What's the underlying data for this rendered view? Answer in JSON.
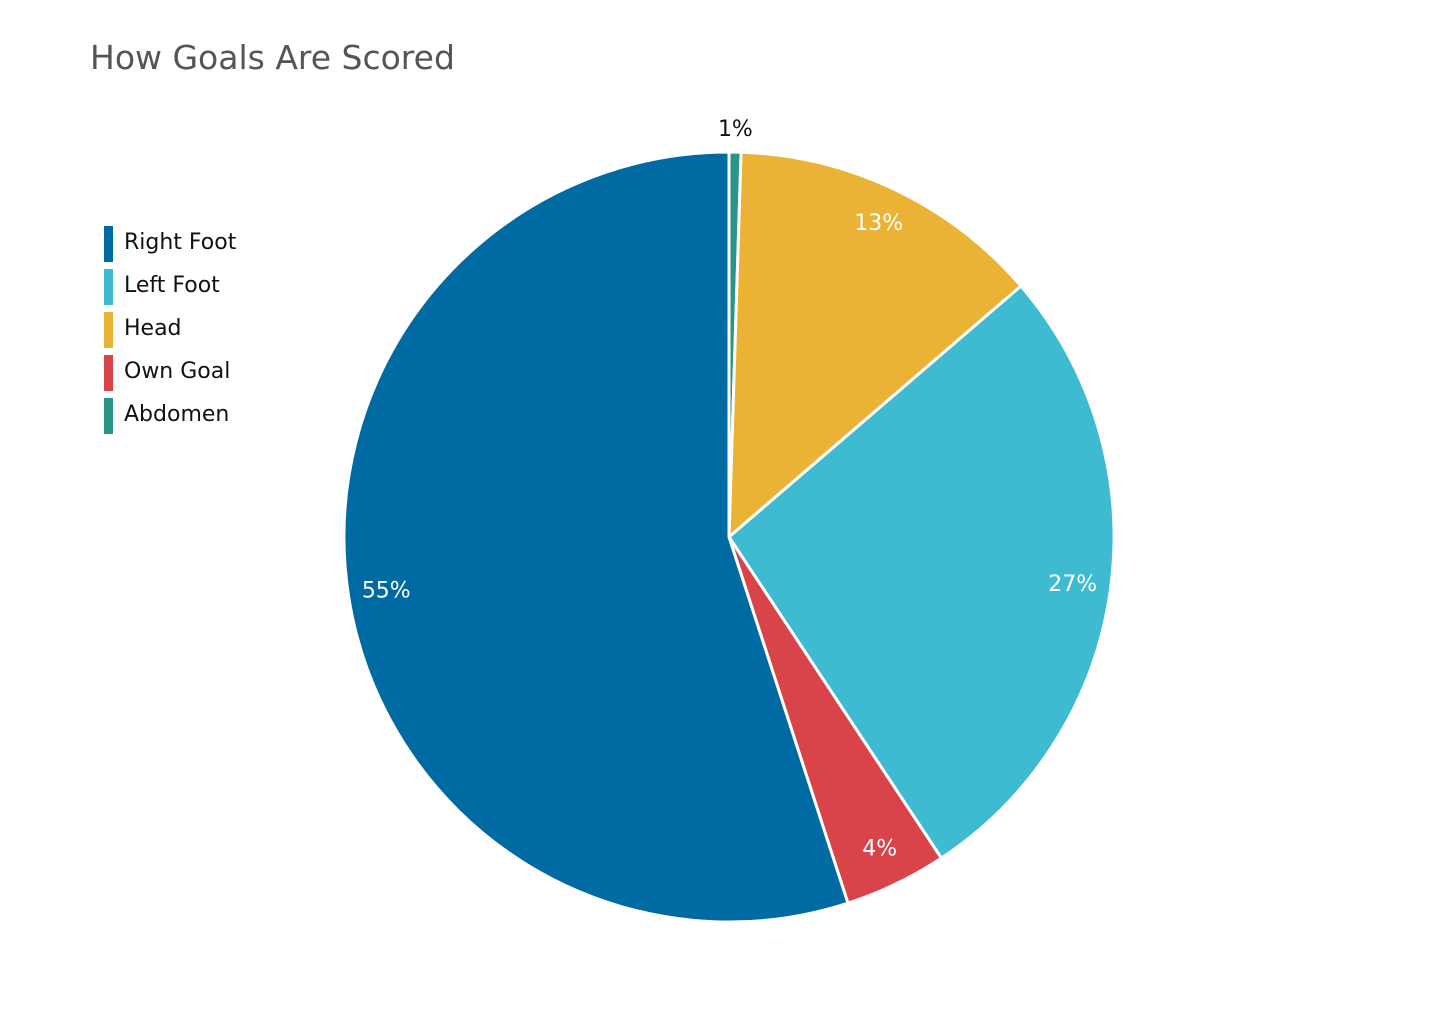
{
  "chart_data": {
    "type": "pie",
    "title": "How Goals Are Scored",
    "legend_position": "left",
    "slices": [
      {
        "name": "Abdomen",
        "value": 0.5,
        "label": "1%",
        "color": "#2a9487",
        "label_color": "#111111"
      },
      {
        "name": "Head",
        "value": 13.2,
        "label": "13%",
        "color": "#ebb335",
        "label_color": "#ffffff"
      },
      {
        "name": "Left Foot",
        "value": 27.0,
        "label": "27%",
        "color": "#3ebbd1",
        "label_color": "#ffffff"
      },
      {
        "name": "Own Goal",
        "value": 4.3,
        "label": "4%",
        "color": "#d9434a",
        "label_color": "#ffffff"
      },
      {
        "name": "Right Foot",
        "value": 55.0,
        "label": "55%",
        "color": "#006aa2",
        "label_color": "#ffffff"
      }
    ],
    "legend": [
      {
        "name": "Right Foot",
        "color": "#006aa2"
      },
      {
        "name": "Left Foot",
        "color": "#3ebbd1"
      },
      {
        "name": "Head",
        "color": "#ebb335"
      },
      {
        "name": "Own Goal",
        "color": "#d9434a"
      },
      {
        "name": "Abdomen",
        "color": "#2a9487"
      }
    ]
  }
}
